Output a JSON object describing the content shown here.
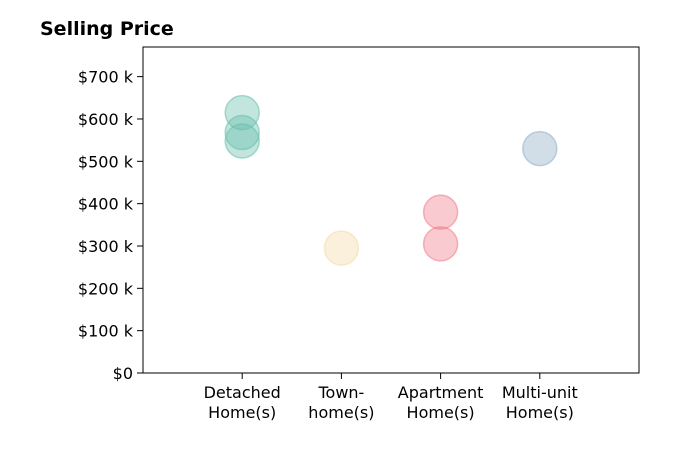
{
  "chart_data": {
    "type": "scatter",
    "title": "Selling Price",
    "xlabel": "",
    "ylabel": "",
    "categories": [
      [
        "Detached",
        "Home(s)"
      ],
      [
        "Town-",
        "home(s)"
      ],
      [
        "Apartment",
        "Home(s)"
      ],
      [
        "Multi-unit",
        "Home(s)"
      ]
    ],
    "y_ticks": [
      {
        "value": 0,
        "label": "$0"
      },
      {
        "value": 100,
        "label": "$100 k"
      },
      {
        "value": 200,
        "label": "$200 k"
      },
      {
        "value": 300,
        "label": "$300 k"
      },
      {
        "value": 400,
        "label": "$400 k"
      },
      {
        "value": 500,
        "label": "$500 k"
      },
      {
        "value": 600,
        "label": "$600 k"
      },
      {
        "value": 700,
        "label": "$700 k"
      }
    ],
    "ylim": [
      0,
      770
    ],
    "xlim": [
      0,
      5
    ],
    "grid": false,
    "points": [
      {
        "category": 0,
        "value": 615,
        "color": "#66bfac"
      },
      {
        "category": 0,
        "value": 568,
        "color": "#66bfac"
      },
      {
        "category": 0,
        "value": 548,
        "color": "#66bfac"
      },
      {
        "category": 1,
        "value": 295,
        "color": "#f5d9a6"
      },
      {
        "category": 2,
        "value": 380,
        "color": "#f07b8a"
      },
      {
        "category": 2,
        "value": 305,
        "color": "#f07b8a"
      },
      {
        "category": 3,
        "value": 530,
        "color": "#8fadc4"
      }
    ]
  }
}
